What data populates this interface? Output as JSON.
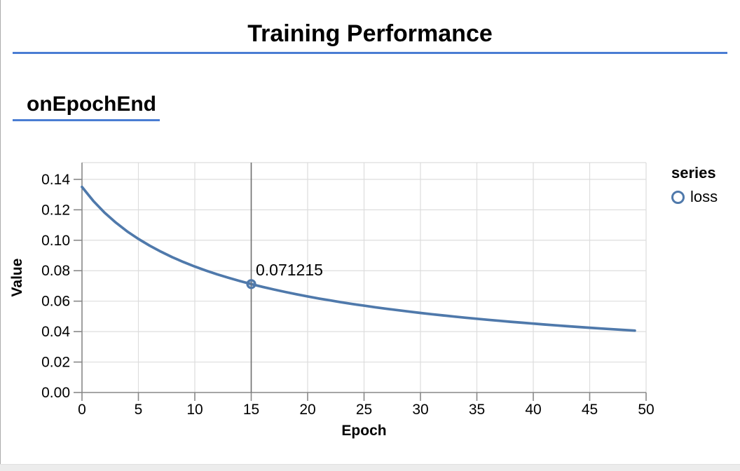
{
  "title": "Training Performance",
  "section": {
    "heading": "onEpochEnd"
  },
  "legend": {
    "title": "series",
    "items": [
      {
        "label": "loss",
        "marker": "circle-outline-icon"
      }
    ]
  },
  "tooltip": {
    "text": "0.071215"
  },
  "colors": {
    "accent_rule": "#4a7dd3",
    "series_line": "#4f79ab",
    "grid": "#dddddd",
    "axis": "#888888",
    "hover_rule": "#707070",
    "text": "#000000",
    "bottom_strip": "#ececec"
  },
  "chart_data": {
    "type": "line",
    "title": "",
    "xlabel": "Epoch",
    "ylabel": "Value",
    "xlim": [
      0,
      50
    ],
    "ylim": [
      0,
      0.151
    ],
    "grid": true,
    "legend_position": "right",
    "x_ticks": {
      "values": [
        0,
        5,
        10,
        15,
        20,
        25,
        30,
        35,
        40,
        45,
        50
      ],
      "labels": [
        "0",
        "5",
        "10",
        "15",
        "20",
        "25",
        "30",
        "35",
        "40",
        "45",
        "50"
      ]
    },
    "y_ticks": {
      "values": [
        0,
        0.02,
        0.04,
        0.06,
        0.08,
        0.1,
        0.12,
        0.14
      ],
      "labels": [
        "0.00",
        "0.02",
        "0.04",
        "0.06",
        "0.08",
        "0.10",
        "0.12",
        "0.14"
      ]
    },
    "series": [
      {
        "name": "loss",
        "color": "#4f79ab",
        "x": [
          0,
          1,
          2,
          3,
          4,
          5,
          6,
          7,
          8,
          9,
          10,
          11,
          12,
          13,
          14,
          15,
          16,
          17,
          18,
          19,
          20,
          21,
          22,
          23,
          24,
          25,
          26,
          27,
          28,
          29,
          30,
          31,
          32,
          33,
          34,
          35,
          36,
          37,
          38,
          39,
          40,
          41,
          42,
          43,
          44,
          45,
          46,
          47,
          48,
          49
        ],
        "values": [
          0.13501,
          0.12585,
          0.11815,
          0.11157,
          0.10586,
          0.10086,
          0.09643,
          0.09247,
          0.08891,
          0.08568,
          0.08274,
          0.08006,
          0.07758,
          0.0753,
          0.07318,
          0.071215,
          0.06937,
          0.06766,
          0.06605,
          0.06453,
          0.0631,
          0.06175,
          0.06048,
          0.05927,
          0.05812,
          0.05702,
          0.05598,
          0.05499,
          0.05404,
          0.05314,
          0.05227,
          0.05143,
          0.05064,
          0.04987,
          0.04913,
          0.04842,
          0.04774,
          0.04708,
          0.04644,
          0.04583,
          0.04524,
          0.04466,
          0.0441,
          0.04357,
          0.04305,
          0.04254,
          0.04205,
          0.04158,
          0.04112,
          0.04067
        ]
      }
    ],
    "highlight": {
      "x": 15,
      "y": 0.071215,
      "label": "0.071215"
    }
  }
}
